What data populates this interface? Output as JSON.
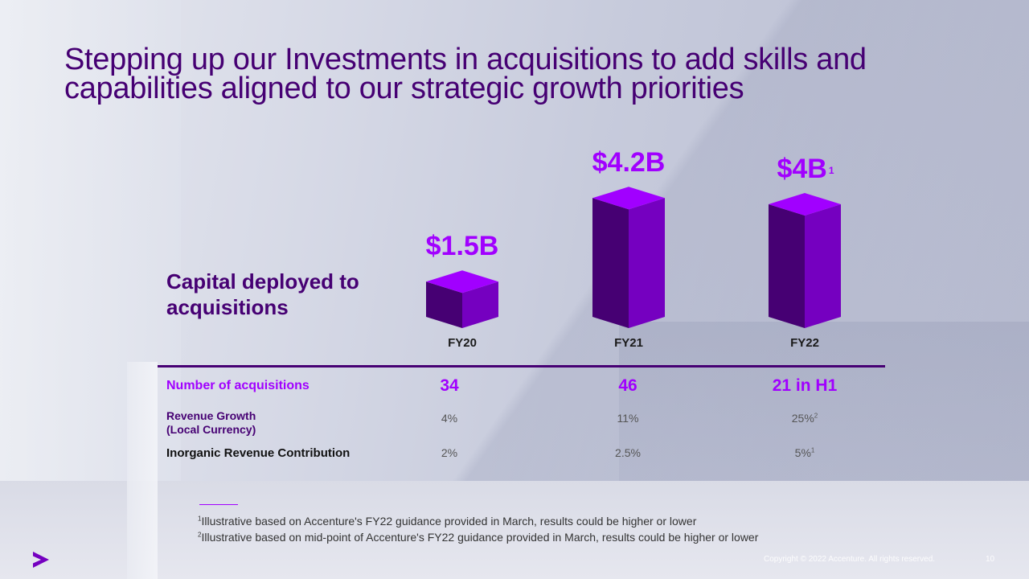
{
  "slide": {
    "title": "Stepping up our Investments in acquisitions to add skills and capabilities aligned to our strategic growth priorities",
    "capital_label": "Capital deployed to acquisitions"
  },
  "chart_data": {
    "type": "bar",
    "categories": [
      "FY20",
      "FY21",
      "FY22"
    ],
    "values": [
      1.5,
      4.2,
      4.0
    ],
    "value_labels": [
      "$1.5B",
      "$4.2B",
      "$4B"
    ],
    "value_label_footnotes": [
      "",
      "",
      "1"
    ],
    "colors": {
      "front": "#7500c0",
      "side": "#460073",
      "top": "#a100ff"
    }
  },
  "table": {
    "rows": [
      {
        "label": "Number of acquisitions",
        "values": [
          "34",
          "46",
          "21 in H1"
        ],
        "footnotes": [
          "",
          "",
          ""
        ]
      },
      {
        "label_line1": "Revenue Growth",
        "label_line2": "(Local Currency)",
        "values": [
          "4%",
          "11%",
          "25%"
        ],
        "footnotes": [
          "",
          "",
          "2"
        ]
      },
      {
        "label": "Inorganic Revenue Contribution",
        "values": [
          "2%",
          "2.5%",
          "5%"
        ],
        "footnotes": [
          "",
          "",
          "1"
        ]
      }
    ]
  },
  "footnotes": [
    {
      "mark": "1",
      "text": "Illustrative based on Accenture's FY22 guidance provided in March, results could be higher or lower"
    },
    {
      "mark": "2",
      "text": "Illustrative based on mid-point of Accenture's FY22 guidance provided in March, results could be higher or lower"
    }
  ],
  "footer": {
    "copyright": "Copyright © 2022 Accenture. All rights reserved.",
    "page_number": "10",
    "logo_icon": "accenture-greater-than-logo",
    "brand_color": "#a100ff"
  }
}
